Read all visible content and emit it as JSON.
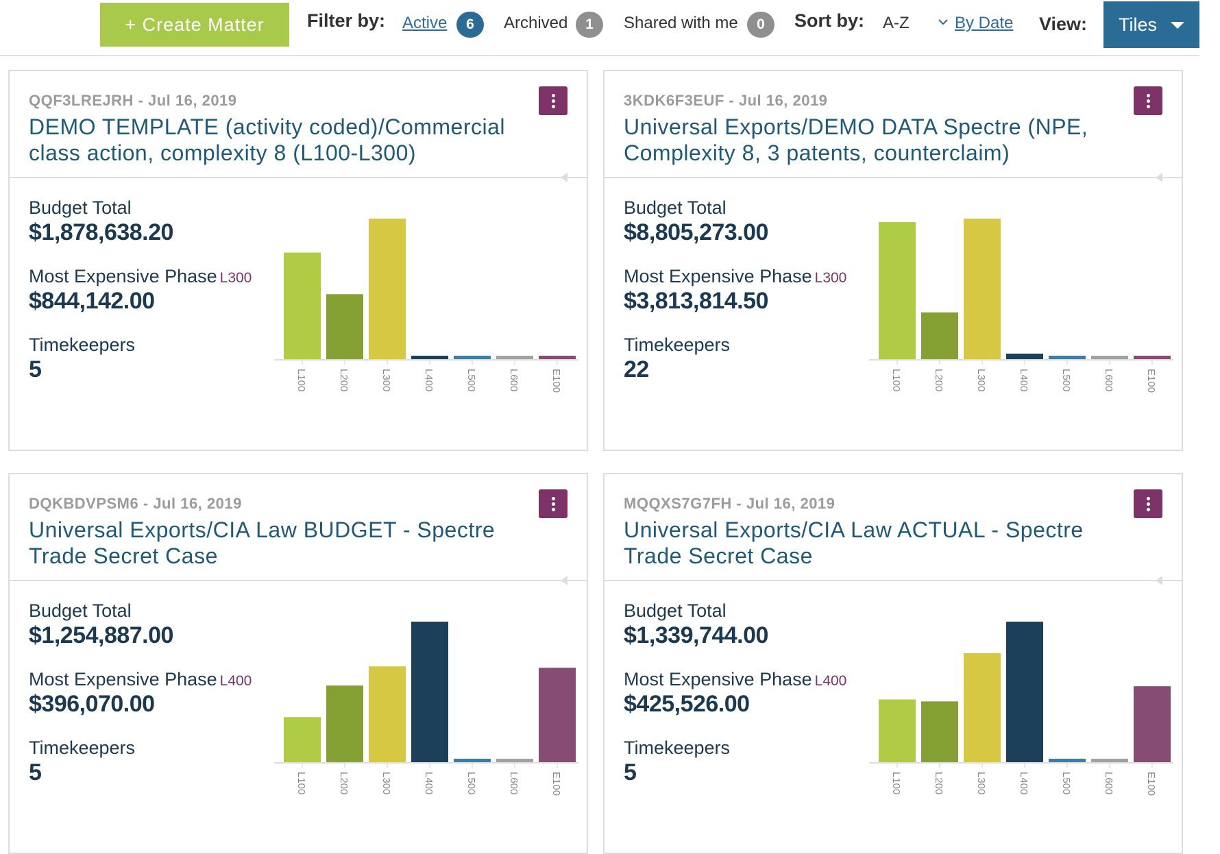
{
  "toolbar": {
    "create_label": "+ Create Matter",
    "filter_label": "Filter by:",
    "filters": [
      {
        "label": "Active",
        "count": "6"
      },
      {
        "label": "Archived",
        "count": "1"
      },
      {
        "label": "Shared with me",
        "count": "0"
      }
    ],
    "sort_label": "Sort by:",
    "sort_az": "A-Z",
    "sort_date": "By Date",
    "view_label": "View:",
    "view_value": "Tiles"
  },
  "labels": {
    "budget_total": "Budget Total",
    "most_expensive_phase": "Most Expensive Phase",
    "timekeepers": "Timekeepers"
  },
  "colors": {
    "L100": "#afcc44",
    "L200": "#86a133",
    "L300": "#d6c842",
    "L400": "#1c405a",
    "L500": "#3b7ea8",
    "L600": "#a2a2a2",
    "E100": "#864c73"
  },
  "tiles": [
    {
      "code": "QQF3LREJRH",
      "date": "Jul 16, 2019",
      "title": "DEMO TEMPLATE (activity coded)/Commercial class action, complexity 8 (L100-L300)",
      "budget_total": "$1,878,638.20",
      "phase": "L300",
      "phase_amount": "$844,142.00",
      "timekeepers": "5",
      "chart_data": {
        "type": "bar",
        "categories": [
          "L100",
          "L200",
          "L300",
          "L400",
          "L500",
          "L600",
          "E100"
        ],
        "values": [
          640000,
          390000,
          844142,
          2000,
          2000,
          2000,
          2000
        ],
        "ymax": 844142
      }
    },
    {
      "code": "3KDK6F3EUF",
      "date": "Jul 16, 2019",
      "title": "Universal Exports/DEMO DATA Spectre (NPE, Complexity 8, 3 patents, counterclaim)",
      "budget_total": "$8,805,273.00",
      "phase": "L300",
      "phase_amount": "$3,813,814.50",
      "timekeepers": "22",
      "chart_data": {
        "type": "bar",
        "categories": [
          "L100",
          "L200",
          "L300",
          "L400",
          "L500",
          "L600",
          "E100"
        ],
        "values": [
          3720000,
          1270000,
          3813814.5,
          150000,
          8000,
          8000,
          8000
        ],
        "ymax": 3813814.5
      }
    },
    {
      "code": "DQKBDVPSM6",
      "date": "Jul 16, 2019",
      "title": "Universal Exports/CIA Law BUDGET - Spectre Trade Secret Case",
      "budget_total": "$1,254,887.00",
      "phase": "L400",
      "phase_amount": "$396,070.00",
      "timekeepers": "5",
      "chart_data": {
        "type": "bar",
        "categories": [
          "L100",
          "L200",
          "L300",
          "L400",
          "L500",
          "L600",
          "E100"
        ],
        "values": [
          127000,
          216000,
          270000,
          396070,
          1000,
          1000,
          266000
        ],
        "ymax": 396070
      }
    },
    {
      "code": "MQQXS7G7FH",
      "date": "Jul 16, 2019",
      "title": "Universal Exports/CIA Law ACTUAL - Spectre Trade Secret Case",
      "budget_total": "$1,339,744.00",
      "phase": "L400",
      "phase_amount": "$425,526.00",
      "timekeepers": "5",
      "chart_data": {
        "type": "bar",
        "categories": [
          "L100",
          "L200",
          "L300",
          "L400",
          "L500",
          "L600",
          "E100"
        ],
        "values": [
          190000,
          184000,
          330000,
          425526,
          1000,
          1000,
          230000
        ],
        "ymax": 425526
      }
    }
  ]
}
